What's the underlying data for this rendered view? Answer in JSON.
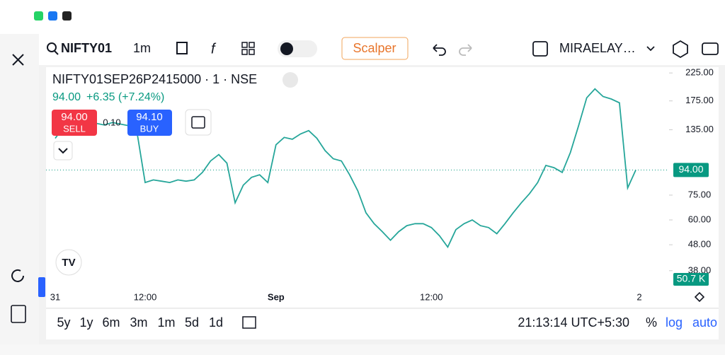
{
  "toolbar": {
    "symbol": "NIFTY01",
    "interval": "1m",
    "strategy": "Scalper",
    "account": "MIRAELAY…"
  },
  "legend": {
    "title": "NIFTY01SEP26P2415000 · 1 · NSE",
    "price": "94.00",
    "change": "+6.35 (+7.24%)",
    "sell_price": "94.00",
    "sell_label": "SELL",
    "spread": "0.10",
    "buy_price": "94.10",
    "buy_label": "BUY"
  },
  "chart_data": {
    "type": "line",
    "log_scale": true,
    "color": "#26a69a",
    "categories": [
      "31",
      null,
      null,
      null,
      null,
      null,
      null,
      null,
      null,
      null,
      null,
      "12:00",
      null,
      null,
      null,
      null,
      null,
      null,
      null,
      null,
      null,
      null,
      null,
      null,
      null,
      null,
      null,
      "Sep",
      null,
      null,
      null,
      null,
      null,
      null,
      null,
      null,
      null,
      null,
      null,
      null,
      null,
      null,
      null,
      null,
      null,
      null,
      "12:00",
      null,
      null,
      null,
      null,
      null,
      null,
      null,
      null,
      null,
      null,
      null,
      null,
      null,
      null,
      null,
      null,
      null,
      null,
      null,
      null,
      null,
      null,
      null,
      null,
      "2"
    ],
    "values": [
      125,
      138,
      140,
      142,
      140,
      143,
      141,
      144,
      142,
      140,
      132,
      84,
      86,
      85,
      84,
      86,
      85,
      86,
      92,
      102,
      108,
      100,
      70,
      82,
      88,
      90,
      84,
      118,
      126,
      124,
      130,
      134,
      125,
      112,
      104,
      102,
      90,
      78,
      64,
      58,
      54,
      50,
      54,
      57,
      58,
      58,
      56,
      52,
      47,
      55,
      58,
      60,
      57,
      56,
      53,
      58,
      64,
      70,
      76,
      84,
      98,
      96,
      92,
      110,
      140,
      180,
      195,
      182,
      178,
      172,
      80,
      94
    ],
    "ylim": [
      33,
      237
    ],
    "yticks": [
      {
        "value": 225,
        "label": "225.00"
      },
      {
        "value": 175,
        "label": "175.00"
      },
      {
        "value": 135,
        "label": "135.00"
      },
      {
        "value": 75,
        "label": "75.00"
      },
      {
        "value": 60,
        "label": "60.00"
      },
      {
        "value": 48,
        "label": "48.00"
      },
      {
        "value": 38,
        "label": "38.00"
      }
    ],
    "last_price": {
      "value": 94,
      "label": "94.00"
    },
    "volume_label": "50.7 K"
  },
  "bottom": {
    "ranges": [
      "5y",
      "1y",
      "6m",
      "3m",
      "1m",
      "5d",
      "1d"
    ],
    "clock": "21:13:14 UTC+5:30",
    "percent": "%",
    "log": "log",
    "auto": "auto"
  }
}
